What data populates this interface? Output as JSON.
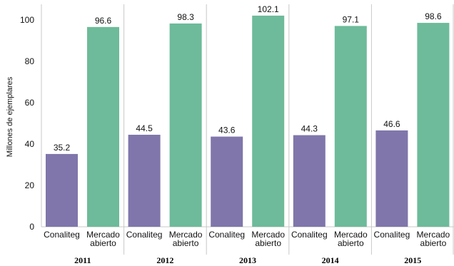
{
  "chart_data": {
    "type": "bar",
    "ylabel": "Millones de ejemplares",
    "ylim": [
      0,
      106
    ],
    "yticks": [
      0,
      20,
      40,
      60,
      80,
      100
    ],
    "grid": false,
    "groups": [
      {
        "year": "2011",
        "bars": [
          {
            "label": "Conaliteg",
            "value": 35.2,
            "value_label": "35.2"
          },
          {
            "label": "Mercado\nabierto",
            "value": 96.6,
            "value_label": "96.6"
          }
        ]
      },
      {
        "year": "2012",
        "bars": [
          {
            "label": "Conaliteg",
            "value": 44.5,
            "value_label": "44.5"
          },
          {
            "label": "Mercado\nabierto",
            "value": 98.3,
            "value_label": "98.3"
          }
        ]
      },
      {
        "year": "2013",
        "bars": [
          {
            "label": "Conaliteg",
            "value": 43.6,
            "value_label": "43.6"
          },
          {
            "label": "Mercado\nabierto",
            "value": 102.1,
            "value_label": "102.1"
          }
        ]
      },
      {
        "year": "2014",
        "bars": [
          {
            "label": "Conaliteg",
            "value": 44.3,
            "value_label": "44.3"
          },
          {
            "label": "Mercado\nabierto",
            "value": 97.1,
            "value_label": "97.1"
          }
        ]
      },
      {
        "year": "2015",
        "bars": [
          {
            "label": "Conaliteg",
            "value": 46.6,
            "value_label": "46.6"
          },
          {
            "label": "Mercado\nabierto",
            "value": 98.6,
            "value_label": "98.6"
          }
        ]
      }
    ],
    "colors": {
      "Conaliteg": "#8076ab",
      "Mercado abierto": "#6dbb9a"
    }
  }
}
